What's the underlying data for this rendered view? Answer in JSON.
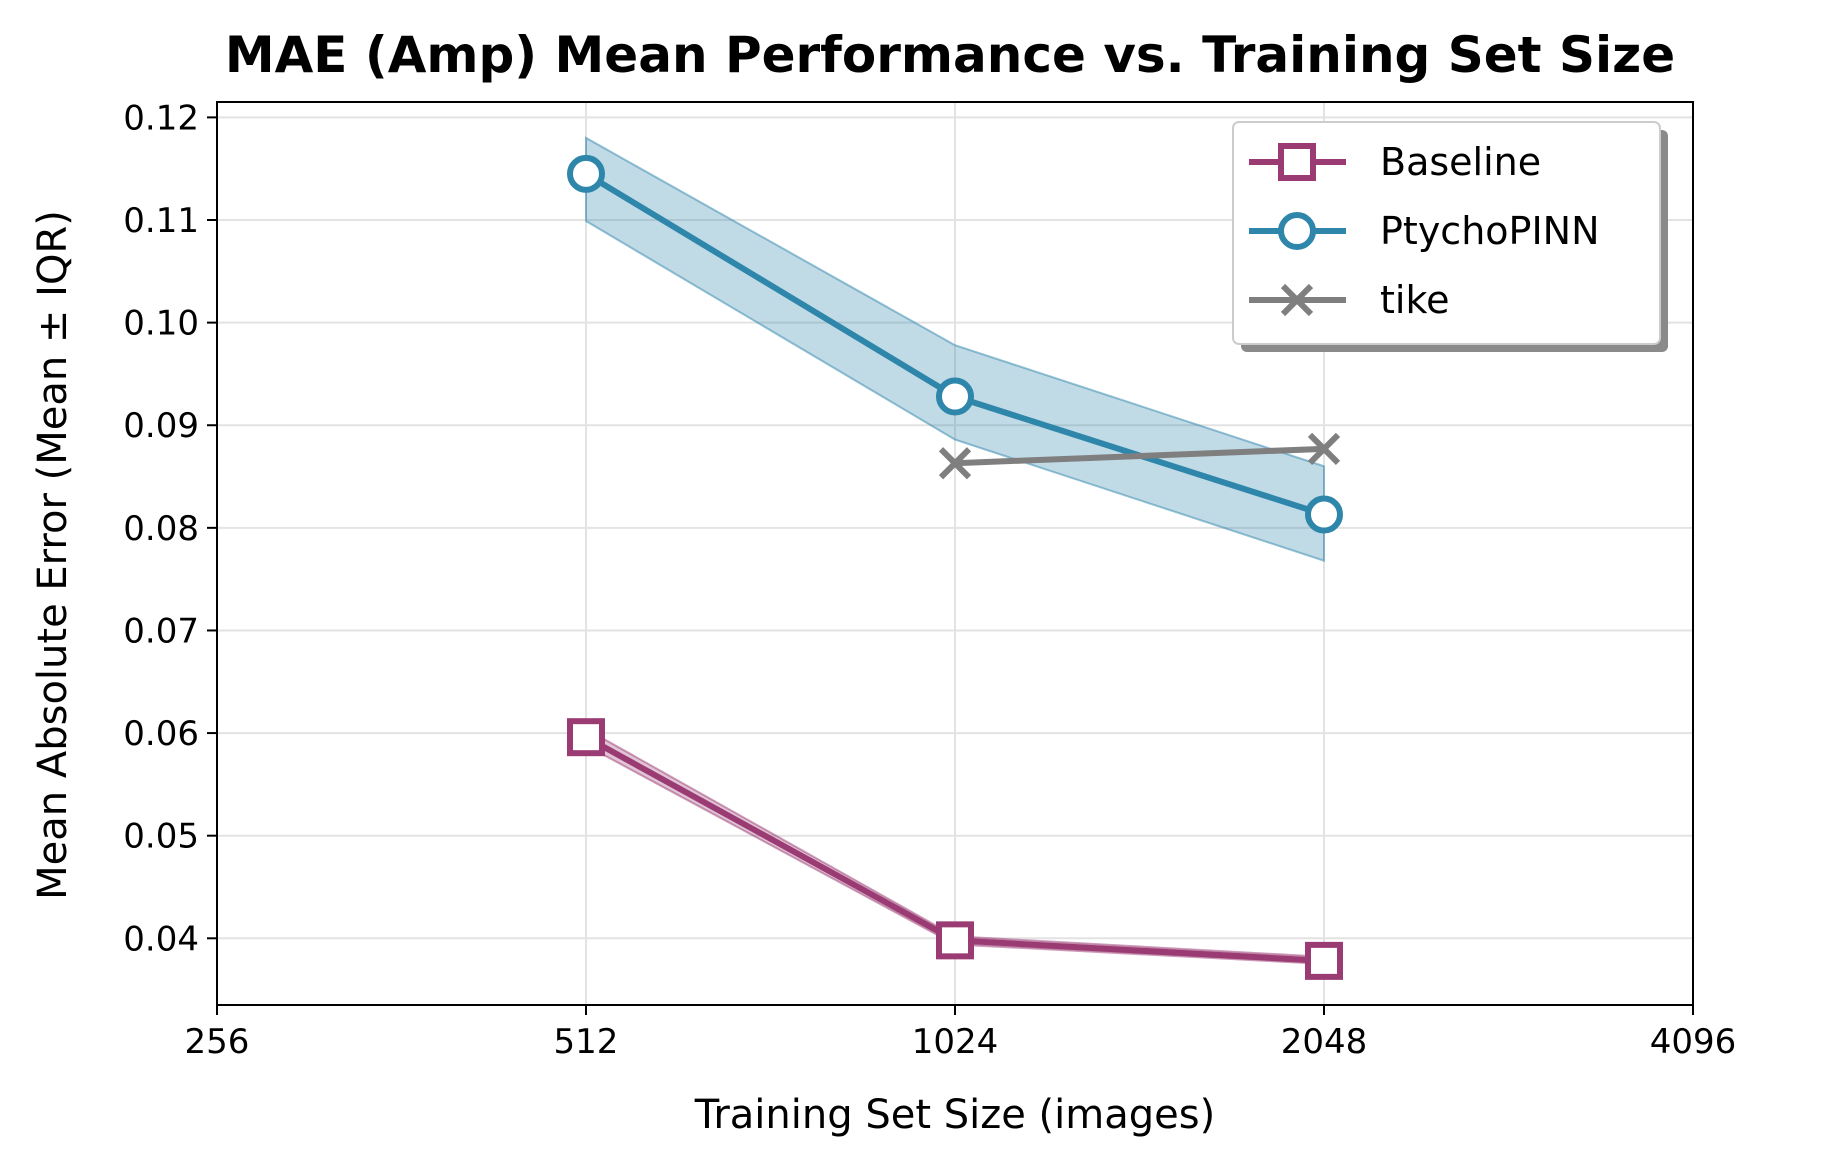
{
  "chart_data": {
    "type": "line",
    "title": "MAE (Amp) Mean Performance vs. Training Set Size",
    "xlabel": "Training Set Size (images)",
    "ylabel": "Mean Absolute Error (Mean ± IQR)",
    "x_scale": "log2",
    "xlim": [
      256,
      4096
    ],
    "ylim": [
      0.0335,
      0.1215
    ],
    "x_ticks": [
      256,
      512,
      1024,
      2048,
      4096
    ],
    "y_ticks": [
      0.04,
      0.05,
      0.06,
      0.07,
      0.08,
      0.09,
      0.1,
      0.11,
      0.12
    ],
    "x_tick_labels": [
      "256",
      "512",
      "1024",
      "2048",
      "4096"
    ],
    "y_tick_labels": [
      "0.04",
      "0.05",
      "0.06",
      "0.07",
      "0.08",
      "0.09",
      "0.10",
      "0.11",
      "0.12"
    ],
    "grid": true,
    "legend_position": "top-right",
    "series": [
      {
        "name": "Baseline",
        "color": "#9b3b74",
        "marker": "square",
        "x": [
          512,
          1024,
          2048
        ],
        "y": [
          0.0596,
          0.0398,
          0.0378
        ],
        "band_low": [
          0.0588,
          0.0394,
          0.0375
        ],
        "band_high": [
          0.0604,
          0.0402,
          0.0382
        ]
      },
      {
        "name": "PtychoPINN",
        "color": "#2e86ab",
        "marker": "circle",
        "x": [
          512,
          1024,
          2048
        ],
        "y": [
          0.1145,
          0.0928,
          0.0813
        ],
        "band_low": [
          0.1099,
          0.0886,
          0.0768
        ],
        "band_high": [
          0.118,
          0.0978,
          0.086
        ]
      },
      {
        "name": "tike",
        "color": "#7f7f7f",
        "marker": "x",
        "x": [
          1024,
          2048
        ],
        "y": [
          0.0863,
          0.0877
        ]
      }
    ]
  }
}
